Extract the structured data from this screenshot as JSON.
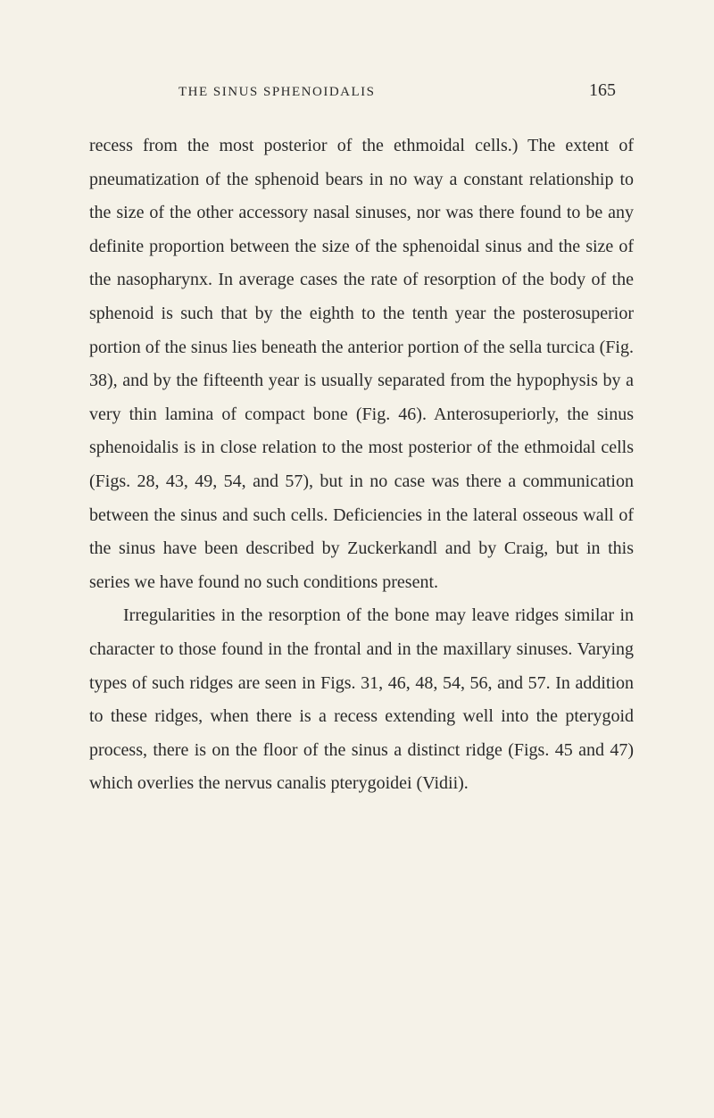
{
  "header": {
    "running_title": "THE SINUS SPHENOIDALIS",
    "page_number": "165"
  },
  "content": {
    "paragraph1": "recess from the most posterior of the ethmoidal cells.) The extent of pneumatization of the sphenoid bears in no way a constant relationship to the size of the other accessory nasal sinuses, nor was there found to be any definite proportion between the size of the sphenoidal sinus and the size of the nasopharynx. In average cases the rate of resorption of the body of the sphenoid is such that by the eighth to the tenth year the posterosuperior portion of the sinus lies beneath the anterior portion of the sella turcica (Fig. 38), and by the fifteenth year is usually separated from the hypophysis by a very thin lamina of compact bone (Fig. 46). Anterosuperiorly, the sinus sphenoidalis is in close relation to the most posterior of the ethmoidal cells (Figs. 28, 43, 49, 54, and 57), but in no case was there a communication between the sinus and such cells. Deficiencies in the lateral osseous wall of the sinus have been described by Zuckerkandl and by Craig, but in this series we have found no such conditions present.",
    "paragraph2": "Irregularities in the resorption of the bone may leave ridges similar in character to those found in the frontal and in the maxillary sinuses. Varying types of such ridges are seen in Figs. 31, 46, 48, 54, 56, and 57. In addition to these ridges, when there is a recess extending well into the pterygoid process, there is on the floor of the sinus a distinct ridge (Figs. 45 and 47) which overlies the nervus canalis pterygoidei (Vidii)."
  },
  "styling": {
    "background_color": "#f5f2e8",
    "text_color": "#2a2a2a",
    "body_font_size": 20,
    "header_font_size": 15,
    "page_number_font_size": 20,
    "line_height": 1.88,
    "text_indent": 38
  }
}
